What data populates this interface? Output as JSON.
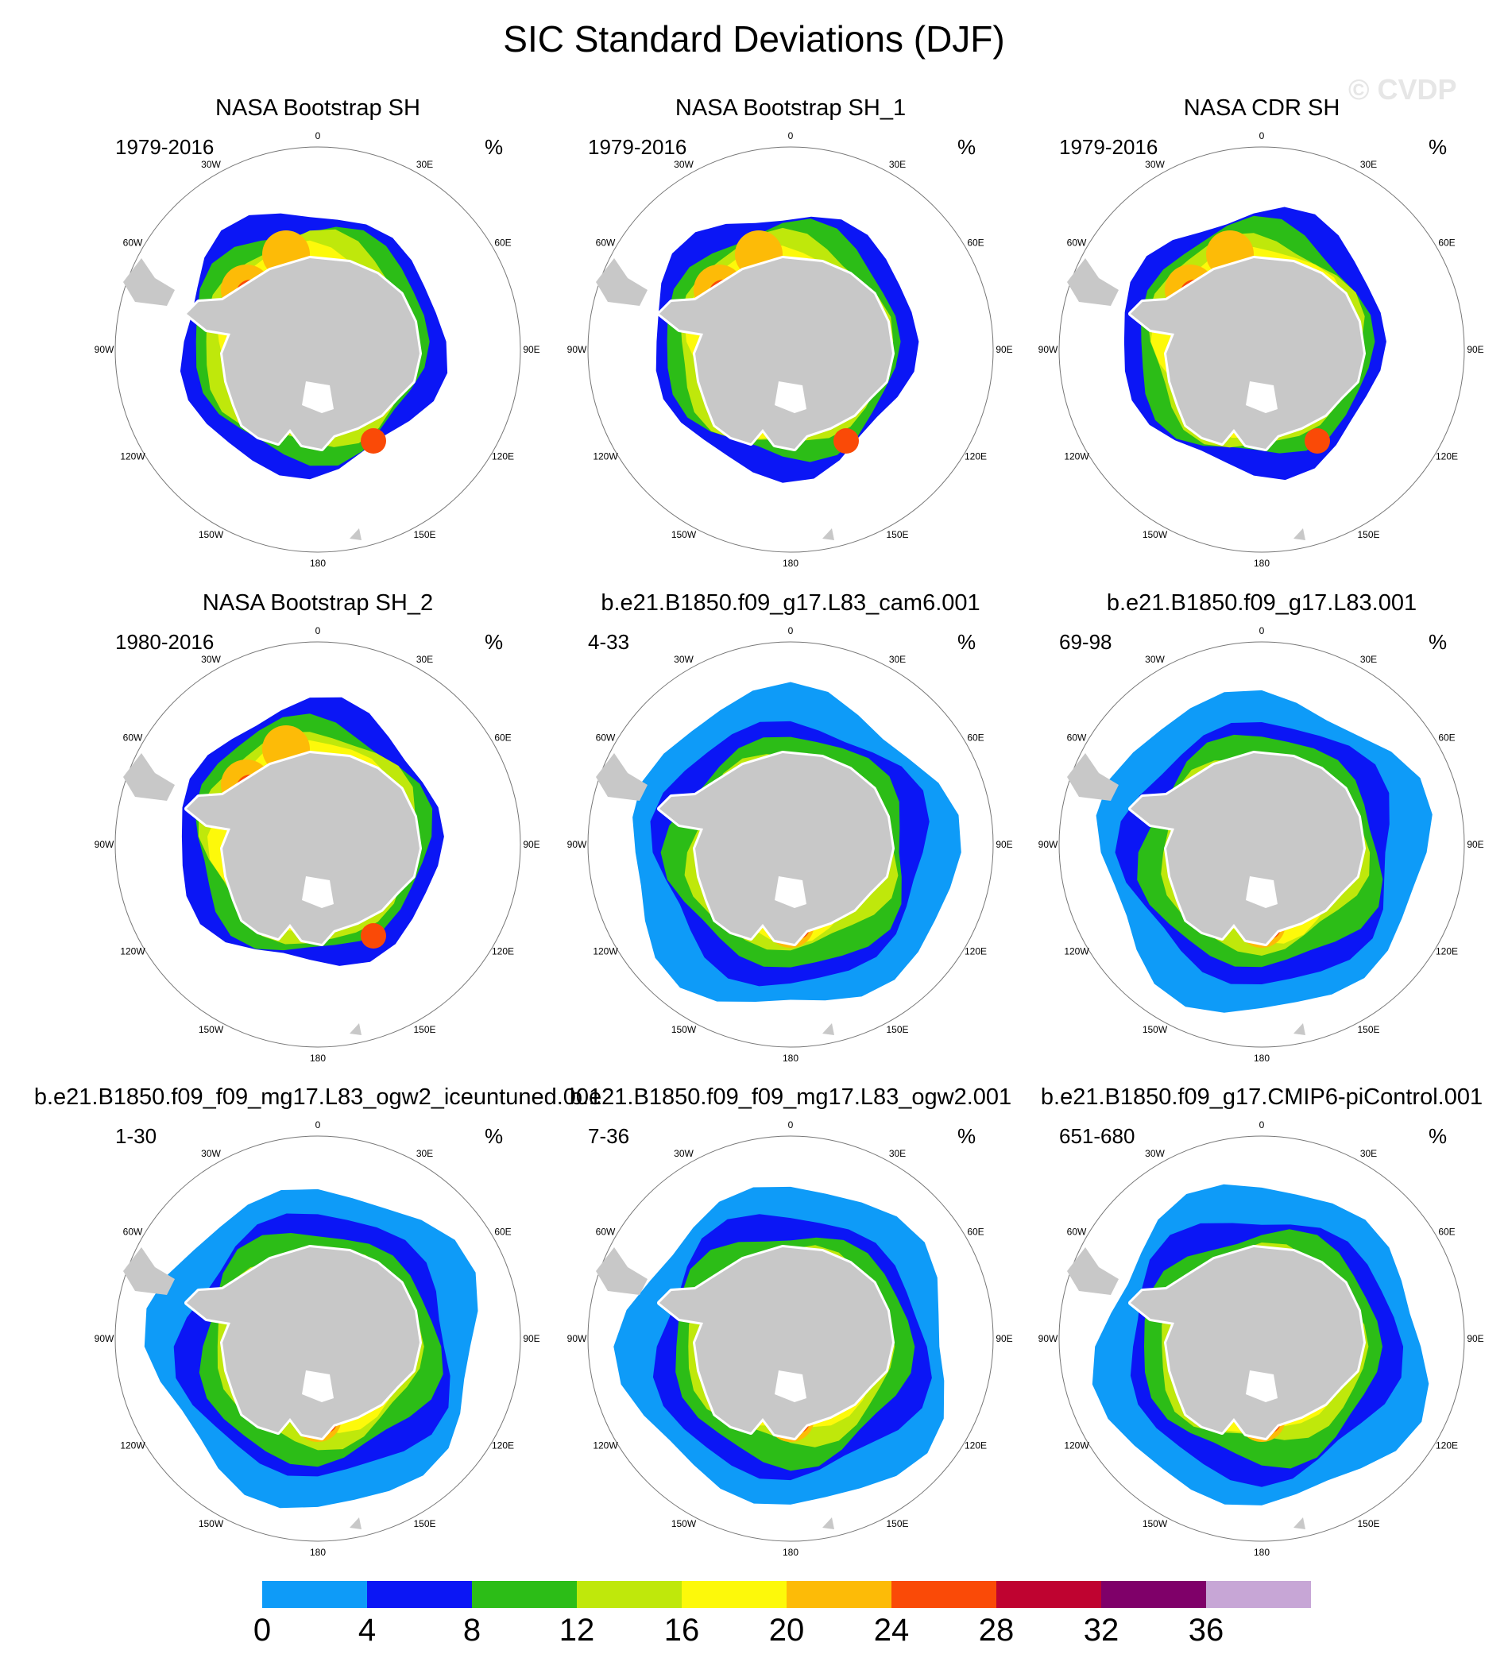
{
  "title": "SIC Standard Deviations (DJF)",
  "watermark": "© CVDP",
  "unit": "%",
  "lon_labels": [
    "0",
    "30E",
    "60E",
    "90E",
    "120E",
    "150E",
    "180",
    "150W",
    "120W",
    "90W",
    "60W",
    "30W"
  ],
  "panels": [
    {
      "title": "NASA Bootstrap SH",
      "period": "1979-2016",
      "pattern": "obs"
    },
    {
      "title": "NASA Bootstrap SH_1",
      "period": "1979-2016",
      "pattern": "obs"
    },
    {
      "title": "NASA CDR SH",
      "period": "1979-2016",
      "pattern": "obs"
    },
    {
      "title": "NASA Bootstrap SH_2",
      "period": "1980-2016",
      "pattern": "obs"
    },
    {
      "title": "b.e21.B1850.f09_g17.L83_cam6.001",
      "period": "4-33",
      "pattern": "model"
    },
    {
      "title": "b.e21.B1850.f09_g17.L83.001",
      "period": "69-98",
      "pattern": "model"
    },
    {
      "title": "b.e21.B1850.f09_f09_mg17.L83_ogw2_iceuntuned.001",
      "period": "1-30",
      "pattern": "model"
    },
    {
      "title": "b.e21.B1850.f09_f09_mg17.L83_ogw2.001",
      "period": "7-36",
      "pattern": "model"
    },
    {
      "title": "b.e21.B1850.f09_g17.CMIP6-piControl.001",
      "period": "651-680",
      "pattern": "model"
    }
  ],
  "colorbar": {
    "labels": [
      "0",
      "4",
      "8",
      "12",
      "16",
      "20",
      "24",
      "28",
      "32",
      "36"
    ],
    "colors": [
      "#0e9bf8",
      "#0b16f5",
      "#2cbd17",
      "#bfe80b",
      "#fdf90a",
      "#fdbb07",
      "#fa4a07",
      "#bf0330",
      "#7f0069",
      "#c7a6d6"
    ]
  }
}
